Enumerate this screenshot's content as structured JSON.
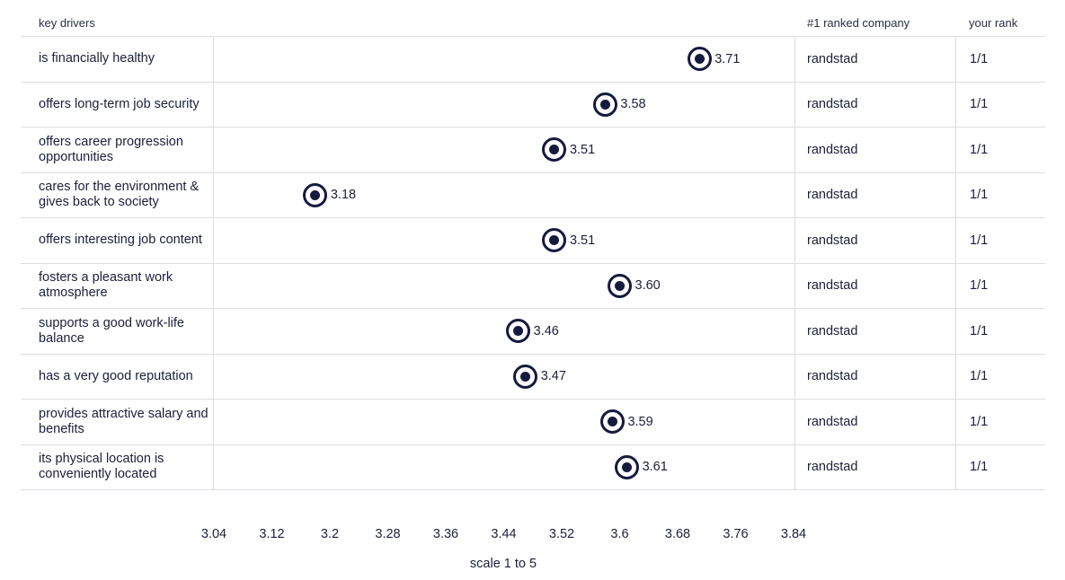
{
  "headers": {
    "drivers": "key drivers",
    "ranked_company": "#1 ranked company",
    "your_rank": "your rank"
  },
  "chart_data": {
    "type": "scatter",
    "xlabel": "scale 1 to 5",
    "xlim": [
      3.04,
      3.84
    ],
    "xticks": [
      "3.04",
      "3.12",
      "3.2",
      "3.28",
      "3.36",
      "3.44",
      "3.52",
      "3.6",
      "3.68",
      "3.76",
      "3.84"
    ],
    "rows": [
      {
        "driver": "is financially healthy",
        "value": 3.71,
        "label": "3.71",
        "company": "randstad",
        "rank": "1/1"
      },
      {
        "driver": "offers long-term job security",
        "value": 3.58,
        "label": "3.58",
        "company": "randstad",
        "rank": "1/1"
      },
      {
        "driver": "offers career progression opportunities",
        "value": 3.51,
        "label": "3.51",
        "company": "randstad",
        "rank": "1/1"
      },
      {
        "driver": "cares for the environment & gives back to society",
        "value": 3.18,
        "label": "3.18",
        "company": "randstad",
        "rank": "1/1"
      },
      {
        "driver": "offers interesting job content",
        "value": 3.51,
        "label": "3.51",
        "company": "randstad",
        "rank": "1/1"
      },
      {
        "driver": "fosters a pleasant work atmosphere",
        "value": 3.6,
        "label": "3.60",
        "company": "randstad",
        "rank": "1/1"
      },
      {
        "driver": "supports a good work-life balance",
        "value": 3.46,
        "label": "3.46",
        "company": "randstad",
        "rank": "1/1"
      },
      {
        "driver": "has a very good reputation",
        "value": 3.47,
        "label": "3.47",
        "company": "randstad",
        "rank": "1/1"
      },
      {
        "driver": "provides attractive salary and benefits",
        "value": 3.59,
        "label": "3.59",
        "company": "randstad",
        "rank": "1/1"
      },
      {
        "driver": "its physical location is conveniently located",
        "value": 3.61,
        "label": "3.61",
        "company": "randstad",
        "rank": "1/1"
      }
    ]
  }
}
